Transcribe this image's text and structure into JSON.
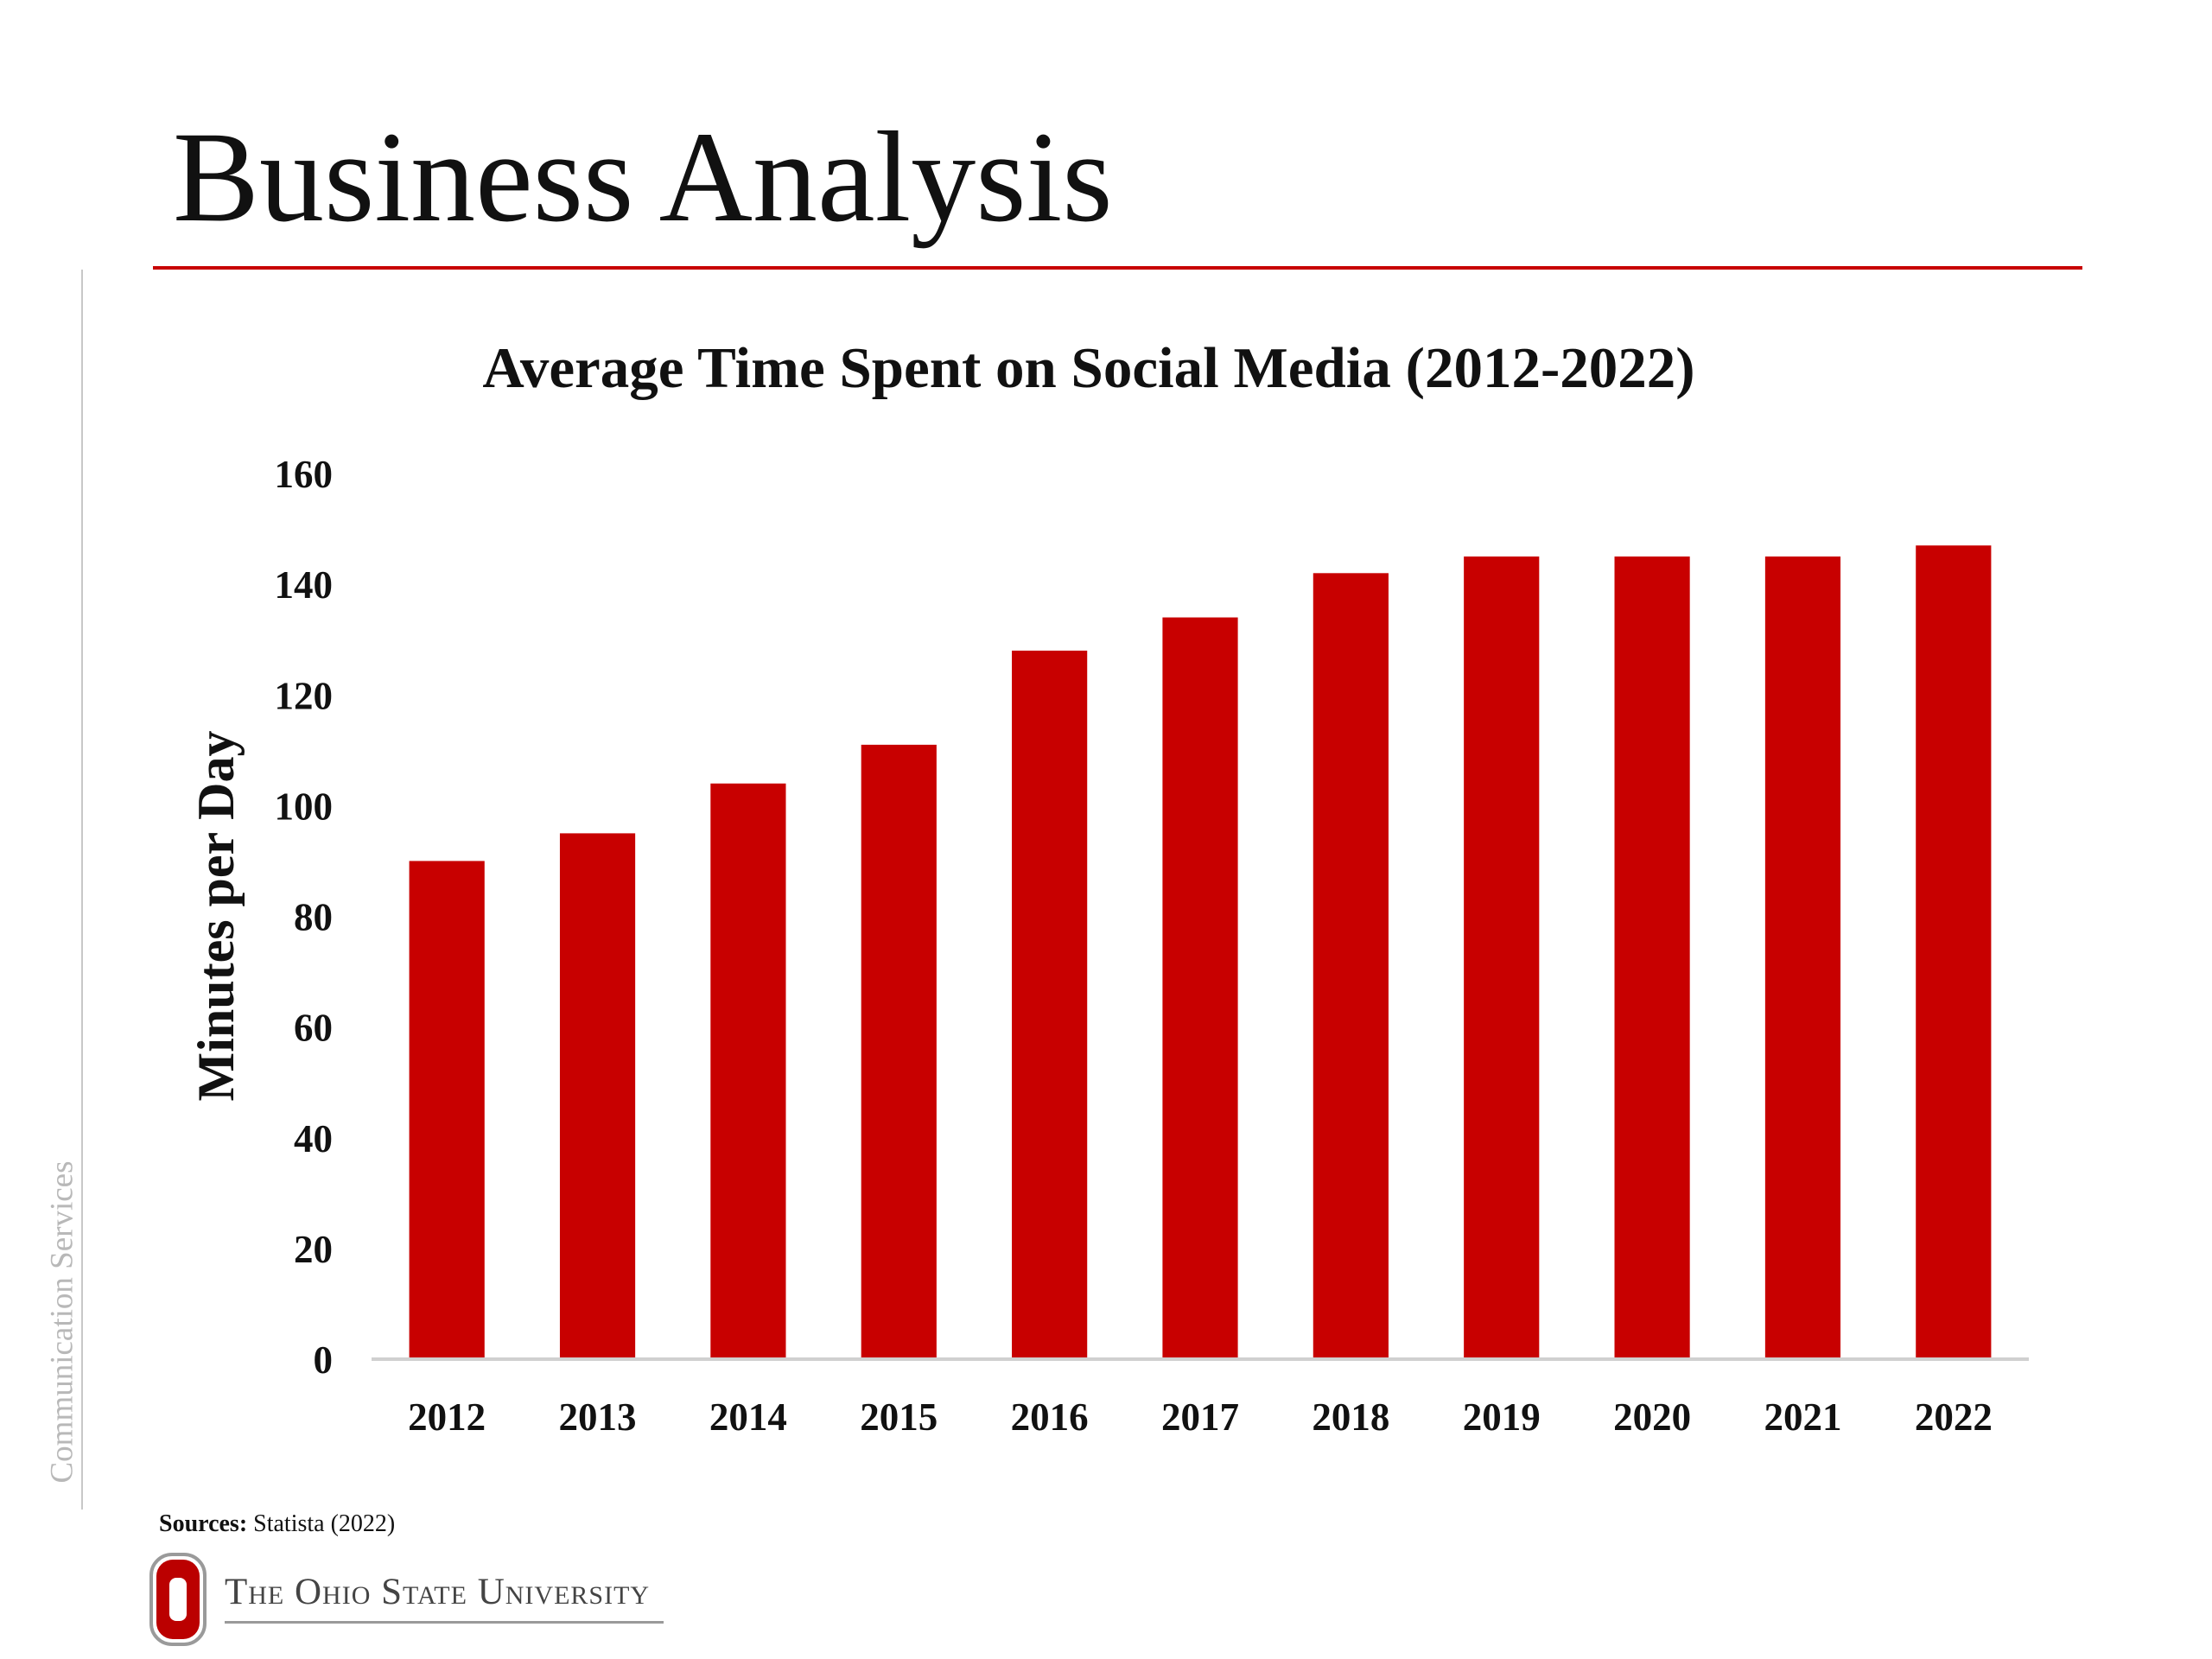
{
  "slide": {
    "title": "Business Analysis",
    "side_label": "Communication Services",
    "sources_label": "Sources:",
    "sources_text": "Statista (2022)",
    "university": "The Ohio State University"
  },
  "colors": {
    "accent": "#c80000",
    "bar": "#c80000",
    "axis": "#d0d0d0",
    "text": "#111111"
  },
  "chart_data": {
    "type": "bar",
    "title": "Average Time Spent on Social Media (2012-2022)",
    "xlabel": "",
    "ylabel": "Minutes per Day",
    "categories": [
      "2012",
      "2013",
      "2014",
      "2015",
      "2016",
      "2017",
      "2018",
      "2019",
      "2020",
      "2021",
      "2022"
    ],
    "values": [
      90,
      95,
      104,
      111,
      128,
      134,
      142,
      145,
      145,
      145,
      147
    ],
    "ylim": [
      0,
      160
    ],
    "yticks": [
      0,
      20,
      40,
      60,
      80,
      100,
      120,
      140,
      160
    ],
    "grid": false,
    "legend": "none"
  }
}
